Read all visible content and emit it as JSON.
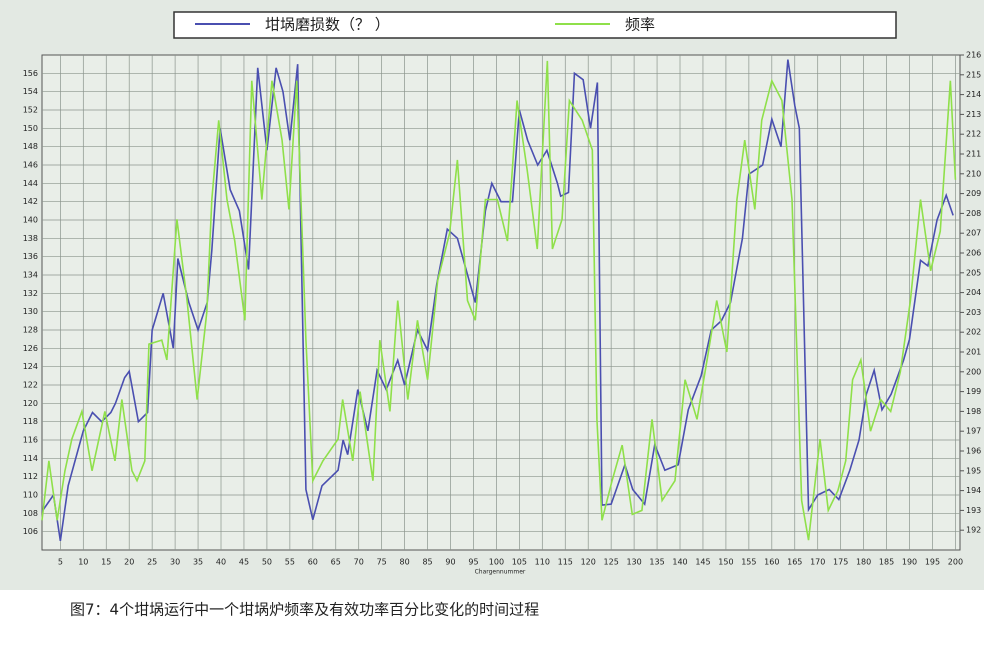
{
  "chart_data": {
    "type": "line",
    "legend_title": null,
    "xlabel": "Chargennummer",
    "caption": "图7：4个坩埚运行中一个坩埚炉频率及有效功率百分比变化的时间过程",
    "xlim": [
      1,
      201
    ],
    "xticks": [
      5,
      10,
      15,
      20,
      25,
      30,
      35,
      40,
      45,
      50,
      55,
      60,
      65,
      70,
      75,
      80,
      85,
      90,
      95,
      100,
      105,
      110,
      115,
      120,
      125,
      130,
      135,
      140,
      145,
      150,
      155,
      160,
      165,
      170,
      175,
      180,
      185,
      190,
      195,
      200
    ],
    "ylim": [
      104,
      158
    ],
    "yticks": [
      106,
      108,
      110,
      112,
      114,
      116,
      118,
      120,
      122,
      124,
      126,
      128,
      130,
      132,
      134,
      136,
      138,
      140,
      142,
      144,
      146,
      148,
      150,
      152,
      154,
      156
    ],
    "y2lim": [
      191,
      216
    ],
    "y2ticks": [
      192,
      193,
      194,
      195,
      196,
      197,
      198,
      199,
      200,
      201,
      202,
      203,
      204,
      205,
      206,
      207,
      208,
      209,
      210,
      211,
      212,
      213,
      214,
      215,
      216
    ],
    "grid": true,
    "series": [
      {
        "name": "坩埚磨损数（？ ）",
        "color": "#4a4fb0",
        "x": [
          1,
          3.5,
          5,
          6.7,
          10,
          12,
          14,
          16,
          17,
          19,
          20,
          22,
          24,
          25,
          27.4,
          29.6,
          30.6,
          33,
          35,
          37,
          38,
          39.8,
          42,
          44,
          46,
          48,
          50,
          52,
          53.5,
          55,
          56.7,
          58.5,
          60,
          62,
          65.5,
          66.6,
          67.6,
          69.8,
          72,
          74,
          76,
          78.5,
          80,
          82.8,
          85,
          87,
          89.3,
          91.5,
          94,
          95.4,
          97.6,
          99,
          101,
          103.5,
          105,
          106.8,
          109,
          111,
          113.3,
          114,
          115.7,
          117,
          118.9,
          120.5,
          122,
          123,
          125,
          128,
          129.7,
          132.3,
          134.5,
          136.7,
          139.6,
          141.8,
          144.6,
          146.8,
          149,
          151,
          153.6,
          155,
          158,
          160,
          162,
          163.5,
          165,
          166,
          168,
          170,
          172.5,
          174.6,
          177,
          179,
          180.6,
          182.3,
          184,
          186,
          188.7,
          190,
          192.4,
          194,
          196,
          198,
          199.5
        ],
        "values": [
          108.2,
          110,
          105,
          111,
          117,
          119,
          118,
          119,
          120,
          122.8,
          123.5,
          118,
          119,
          128,
          132,
          126,
          135.8,
          131,
          128,
          131,
          136.7,
          150,
          143.3,
          141,
          134.6,
          156.6,
          147.6,
          156.6,
          154,
          148.7,
          157,
          110.6,
          107.3,
          111,
          112.7,
          116,
          114.4,
          121.5,
          117,
          123.6,
          121.5,
          124.7,
          122,
          128,
          125.8,
          133,
          139,
          138,
          133.5,
          131,
          141,
          144,
          142,
          142,
          152,
          148.7,
          146,
          147.6,
          144,
          142.6,
          143,
          156,
          155.3,
          150,
          155,
          108.9,
          109,
          113.3,
          110.6,
          109,
          115.5,
          112.7,
          113.3,
          119.3,
          123,
          128,
          129,
          131,
          138,
          145,
          146,
          151,
          148,
          157.5,
          152.5,
          150,
          108.4,
          110,
          110.6,
          109.5,
          112.7,
          116,
          121,
          123.6,
          119.3,
          121,
          124.7,
          127,
          135.6,
          135,
          140,
          142.7,
          140.5
        ]
      },
      {
        "name": "频率",
        "color": "#8fe04a",
        "axis": "y2",
        "x": [
          1,
          2.5,
          4.3,
          6,
          7.5,
          9.7,
          11.9,
          14.7,
          16.9,
          18.4,
          20.6,
          21.7,
          23.4,
          24.3,
          27.1,
          28.2,
          30.4,
          32.6,
          34.8,
          36.9,
          38,
          39.5,
          41.3,
          43,
          45.2,
          46.7,
          48.9,
          51.1,
          53.3,
          54.8,
          56.5,
          58.5,
          60,
          62.2,
          65.5,
          66.5,
          68.7,
          70.3,
          73.1,
          74.6,
          76.8,
          78.5,
          80.7,
          82.8,
          85,
          87.2,
          89.8,
          91.5,
          93.7,
          95.4,
          97.6,
          100.2,
          102.4,
          104.5,
          106.7,
          108.9,
          111.1,
          112.2,
          114.3,
          115.9,
          118.7,
          120.9,
          121.9,
          123,
          125.2,
          127.4,
          129.6,
          131.7,
          133.9,
          136.1,
          138.9,
          141.1,
          143.7,
          145.9,
          148,
          150.2,
          152.4,
          154.1,
          156.3,
          157.8,
          160,
          162.2,
          164.4,
          166.5,
          168,
          170.5,
          172.3,
          174.4,
          176.1,
          177.6,
          179.4,
          181.5,
          183.7,
          185.9,
          188,
          190.2,
          192.4,
          194.6,
          196.7,
          198.9,
          200
        ],
        "values": [
          192.5,
          195.5,
          192.5,
          195,
          196.6,
          198,
          195,
          198,
          195.5,
          198.6,
          195,
          194.5,
          195.5,
          201.4,
          201.6,
          200.6,
          207.7,
          203.6,
          198.6,
          203,
          208.7,
          212.7,
          208.7,
          206.6,
          202.6,
          214.7,
          208.7,
          214.7,
          211.7,
          208.2,
          214.7,
          201.6,
          194.5,
          195.5,
          196.6,
          198.6,
          195.5,
          199,
          194.5,
          201.6,
          198,
          203.6,
          198.6,
          202.6,
          199.6,
          204.6,
          207,
          210.7,
          203.6,
          202.6,
          208.7,
          208.7,
          206.6,
          213.7,
          210.2,
          206.2,
          215.7,
          206.2,
          207.7,
          213.7,
          212.7,
          211.2,
          197.6,
          192.5,
          194.5,
          196.3,
          192.8,
          193,
          197.6,
          193.5,
          194.5,
          199.6,
          197.6,
          200.6,
          203.6,
          201,
          208.7,
          211.7,
          208.2,
          212.7,
          214.7,
          213.7,
          208.7,
          193.5,
          191.5,
          196.6,
          193,
          194,
          195.5,
          199.6,
          200.6,
          197,
          198.6,
          198,
          200,
          203.6,
          208.7,
          205.1,
          207.1,
          214.7,
          209.7
        ]
      }
    ]
  }
}
